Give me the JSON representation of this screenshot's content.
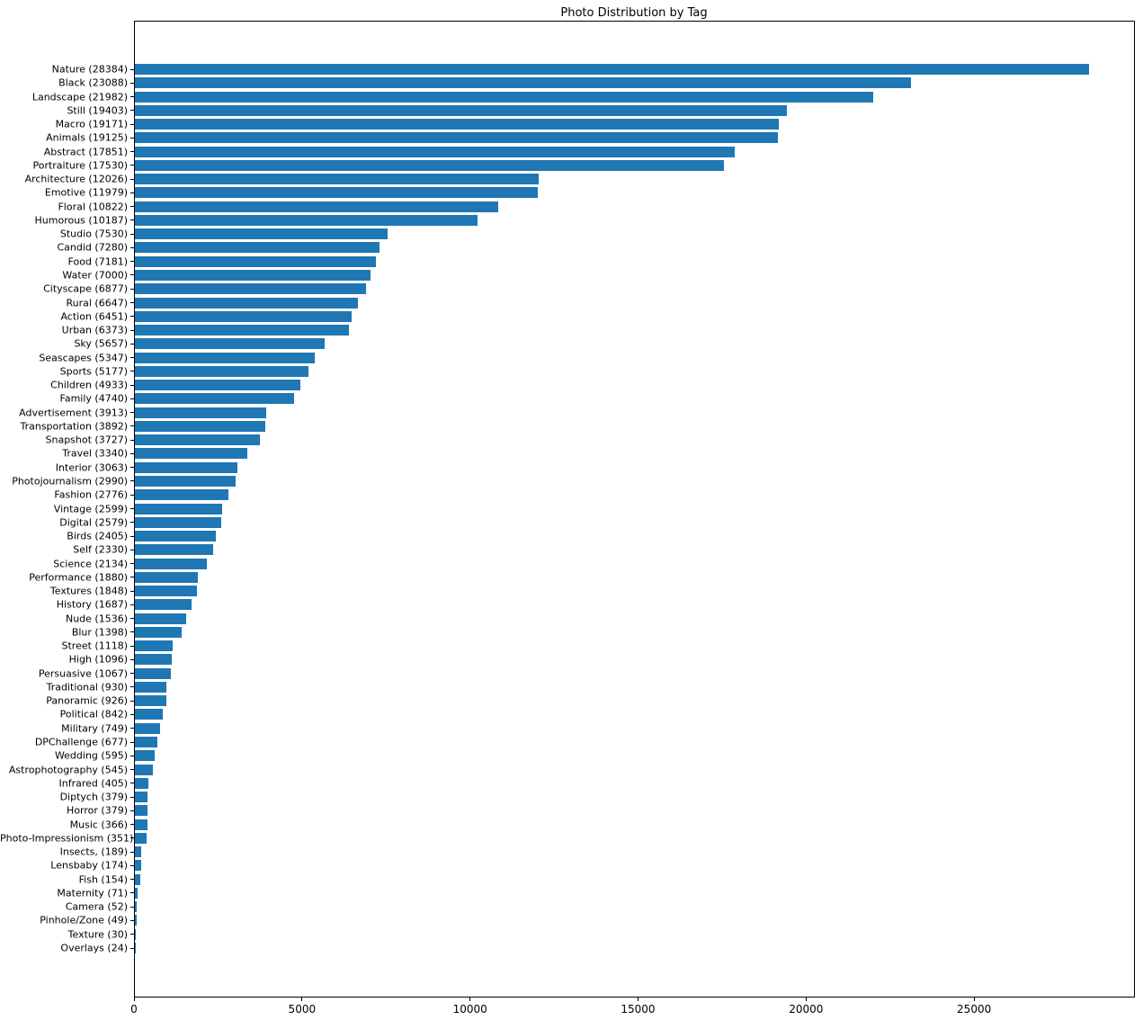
{
  "chart_data": {
    "type": "bar",
    "orientation": "horizontal",
    "title": "Photo Distribution by Tag",
    "xlabel": "",
    "ylabel": "",
    "xlim": [
      0,
      29733
    ],
    "x_ticks": [
      0,
      5000,
      10000,
      15000,
      20000,
      25000
    ],
    "grid": false,
    "legend": "none",
    "bar_color": "#1f77b4",
    "label_format": "{category} ({value})",
    "categories": [
      "Nature",
      "Black",
      "Landscape",
      "Still",
      "Macro",
      "Animals",
      "Abstract",
      "Portraiture",
      "Architecture",
      "Emotive",
      "Floral",
      "Humorous",
      "Studio",
      "Candid",
      "Food",
      "Water",
      "Cityscape",
      "Rural",
      "Action",
      "Urban",
      "Sky",
      "Seascapes",
      "Sports",
      "Children",
      "Family",
      "Advertisement",
      "Transportation",
      "Snapshot",
      "Travel",
      "Interior",
      "Photojournalism",
      "Fashion",
      "Vintage",
      "Digital",
      "Birds",
      "Self",
      "Science",
      "Performance",
      "Textures",
      "History",
      "Nude",
      "Blur",
      "Street",
      "High",
      "Persuasive",
      "Traditional",
      "Panoramic",
      "Political",
      "Military",
      "DPChallenge",
      "Wedding",
      "Astrophotography",
      "Infrared",
      "Diptych",
      "Horror",
      "Music",
      "Photo-Impressionism",
      "Insects,",
      "Lensbaby",
      "Fish",
      "Maternity",
      "Camera",
      "Pinhole/Zone",
      "Texture",
      "Overlays"
    ],
    "values": [
      28384,
      23088,
      21982,
      19403,
      19171,
      19125,
      17851,
      17530,
      12026,
      11979,
      10822,
      10187,
      7530,
      7280,
      7181,
      7000,
      6877,
      6647,
      6451,
      6373,
      5657,
      5347,
      5177,
      4933,
      4740,
      3913,
      3892,
      3727,
      3340,
      3063,
      2990,
      2776,
      2599,
      2579,
      2405,
      2330,
      2134,
      1880,
      1848,
      1687,
      1536,
      1398,
      1118,
      1096,
      1067,
      930,
      926,
      842,
      749,
      677,
      595,
      545,
      405,
      379,
      379,
      366,
      351,
      189,
      174,
      154,
      71,
      52,
      49,
      30,
      24
    ]
  }
}
